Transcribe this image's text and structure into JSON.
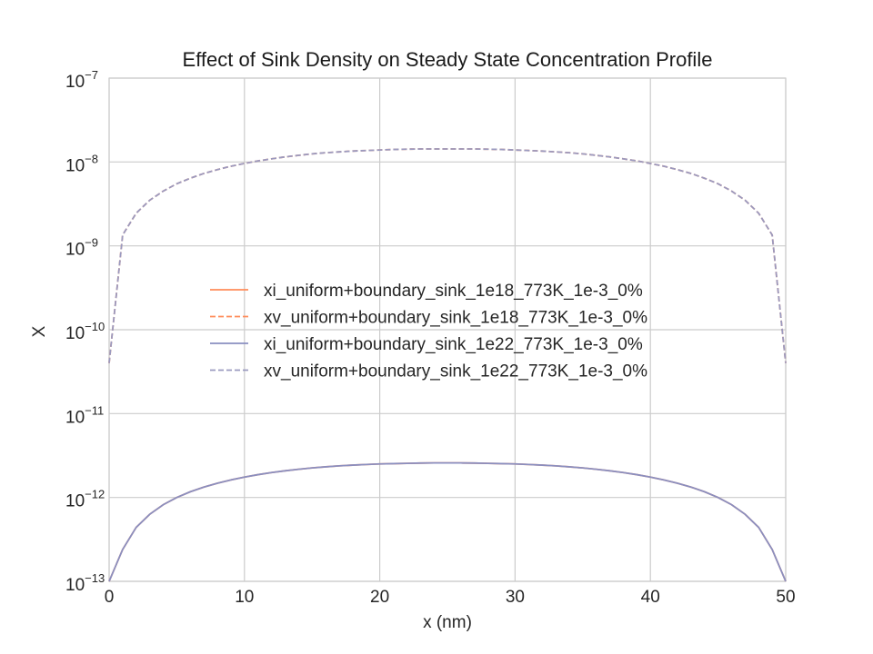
{
  "chart_data": {
    "type": "line",
    "title": "Effect of Sink Density on Steady State Concentration Profile",
    "xlabel": "x (nm)",
    "ylabel": "X",
    "xlim": [
      0,
      50
    ],
    "ylim": [
      1e-13,
      1e-07
    ],
    "yscale": "log",
    "grid": true,
    "legend_position": "center",
    "x_ticks": [
      {
        "value": 0,
        "label": "0"
      },
      {
        "value": 10,
        "label": "10"
      },
      {
        "value": 20,
        "label": "20"
      },
      {
        "value": 30,
        "label": "30"
      },
      {
        "value": 40,
        "label": "40"
      },
      {
        "value": 50,
        "label": "50"
      }
    ],
    "y_ticks": [
      {
        "value": 1e-13,
        "base": "10",
        "exp": "−13"
      },
      {
        "value": 1e-12,
        "base": "10",
        "exp": "−12"
      },
      {
        "value": 1e-11,
        "base": "10",
        "exp": "−11"
      },
      {
        "value": 1e-10,
        "base": "10",
        "exp": "−10"
      },
      {
        "value": 1e-09,
        "base": "10",
        "exp": "−9"
      },
      {
        "value": 1e-08,
        "base": "10",
        "exp": "−8"
      },
      {
        "value": 1e-07,
        "base": "10",
        "exp": "−7"
      }
    ],
    "x": [
      0,
      1,
      2,
      3,
      4,
      5,
      6,
      7,
      8,
      9,
      10,
      11,
      12,
      13,
      14,
      15,
      16,
      17,
      18,
      19,
      20,
      21,
      22,
      23,
      24,
      25,
      26,
      27,
      28,
      29,
      30,
      31,
      32,
      33,
      34,
      35,
      36,
      37,
      38,
      39,
      40,
      41,
      42,
      43,
      44,
      45,
      46,
      47,
      48,
      49,
      50
    ],
    "series": [
      {
        "name": "xi_uniform+boundary_sink_1e18_773K_1e-3_0%",
        "color": "#ff8c5a",
        "dash": "solid",
        "values": [
          0,
          2.4e-13,
          4.4e-13,
          6.3e-13,
          8.2e-13,
          1e-12,
          1.17e-12,
          1.33e-12,
          1.48e-12,
          1.62e-12,
          1.75e-12,
          1.87e-12,
          1.98e-12,
          2.08e-12,
          2.17e-12,
          2.25e-12,
          2.32e-12,
          2.38e-12,
          2.43e-12,
          2.47e-12,
          2.51e-12,
          2.53e-12,
          2.55e-12,
          2.57e-12,
          2.58e-12,
          2.58e-12,
          2.58e-12,
          2.57e-12,
          2.55e-12,
          2.53e-12,
          2.51e-12,
          2.47e-12,
          2.43e-12,
          2.38e-12,
          2.32e-12,
          2.25e-12,
          2.17e-12,
          2.08e-12,
          1.98e-12,
          1.87e-12,
          1.75e-12,
          1.62e-12,
          1.48e-12,
          1.33e-12,
          1.17e-12,
          1e-12,
          8.2e-13,
          6.3e-13,
          4.4e-13,
          2.4e-13,
          0
        ]
      },
      {
        "name": "xv_uniform+boundary_sink_1e18_773K_1e-3_0%",
        "color": "#ff8c5a",
        "dash": "dashed",
        "values": [
          4e-11,
          1.35e-09,
          2.45e-09,
          3.5e-09,
          4.5e-09,
          5.5e-09,
          6.4e-09,
          7.3e-09,
          8.1e-09,
          8.9e-09,
          9.6e-09,
          1.03e-08,
          1.09e-08,
          1.15e-08,
          1.2e-08,
          1.25e-08,
          1.29e-08,
          1.32e-08,
          1.35e-08,
          1.37e-08,
          1.39e-08,
          1.41e-08,
          1.42e-08,
          1.43e-08,
          1.43e-08,
          1.43e-08,
          1.43e-08,
          1.43e-08,
          1.42e-08,
          1.41e-08,
          1.39e-08,
          1.37e-08,
          1.35e-08,
          1.32e-08,
          1.29e-08,
          1.25e-08,
          1.2e-08,
          1.15e-08,
          1.09e-08,
          1.03e-08,
          9.6e-09,
          8.9e-09,
          8.1e-09,
          7.3e-09,
          6.4e-09,
          5.5e-09,
          4.5e-09,
          3.5e-09,
          2.45e-09,
          1.35e-09,
          4e-11
        ]
      },
      {
        "name": "xi_uniform+boundary_sink_1e22_773K_1e-3_0%",
        "color": "#8a8fc0",
        "dash": "solid",
        "values": [
          0,
          2.4e-13,
          4.4e-13,
          6.3e-13,
          8.2e-13,
          1e-12,
          1.17e-12,
          1.33e-12,
          1.48e-12,
          1.62e-12,
          1.75e-12,
          1.87e-12,
          1.98e-12,
          2.08e-12,
          2.17e-12,
          2.25e-12,
          2.32e-12,
          2.38e-12,
          2.43e-12,
          2.47e-12,
          2.51e-12,
          2.53e-12,
          2.55e-12,
          2.57e-12,
          2.58e-12,
          2.58e-12,
          2.58e-12,
          2.57e-12,
          2.55e-12,
          2.53e-12,
          2.51e-12,
          2.47e-12,
          2.43e-12,
          2.38e-12,
          2.32e-12,
          2.25e-12,
          2.17e-12,
          2.08e-12,
          1.98e-12,
          1.87e-12,
          1.75e-12,
          1.62e-12,
          1.48e-12,
          1.33e-12,
          1.17e-12,
          1e-12,
          8.2e-13,
          6.3e-13,
          4.4e-13,
          2.4e-13,
          0
        ]
      },
      {
        "name": "xv_uniform+boundary_sink_1e22_773K_1e-3_0%",
        "color": "#9a9ac0",
        "dash": "dashed",
        "values": [
          4e-11,
          1.35e-09,
          2.45e-09,
          3.5e-09,
          4.5e-09,
          5.5e-09,
          6.4e-09,
          7.3e-09,
          8.1e-09,
          8.9e-09,
          9.6e-09,
          1.03e-08,
          1.09e-08,
          1.15e-08,
          1.2e-08,
          1.25e-08,
          1.29e-08,
          1.32e-08,
          1.35e-08,
          1.37e-08,
          1.39e-08,
          1.41e-08,
          1.42e-08,
          1.43e-08,
          1.43e-08,
          1.43e-08,
          1.43e-08,
          1.43e-08,
          1.42e-08,
          1.41e-08,
          1.39e-08,
          1.37e-08,
          1.35e-08,
          1.32e-08,
          1.29e-08,
          1.25e-08,
          1.2e-08,
          1.15e-08,
          1.09e-08,
          1.03e-08,
          9.6e-09,
          8.9e-09,
          8.1e-09,
          7.3e-09,
          6.4e-09,
          5.5e-09,
          4.5e-09,
          3.5e-09,
          2.45e-09,
          1.35e-09,
          4e-11
        ]
      }
    ]
  }
}
